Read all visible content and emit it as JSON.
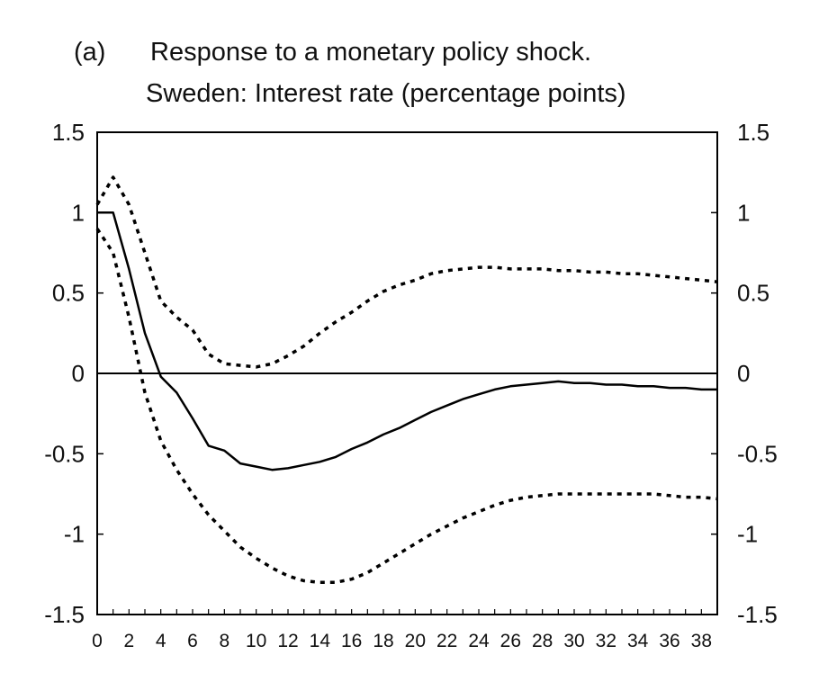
{
  "panel_label": "(a)",
  "title": "Response to a monetary policy shock.",
  "subtitle": "Sweden: Interest rate (percentage points)",
  "chart_data": {
    "type": "line",
    "title": "Response to a monetary policy shock.",
    "subtitle": "Sweden: Interest rate (percentage points)",
    "xlabel": "",
    "ylabel": "",
    "xlim": [
      0,
      39
    ],
    "ylim": [
      -1.5,
      1.5
    ],
    "x_ticks": [
      0,
      2,
      4,
      6,
      8,
      10,
      12,
      14,
      16,
      18,
      20,
      22,
      24,
      26,
      28,
      30,
      32,
      34,
      36,
      38
    ],
    "y_ticks_left": [
      "1.5",
      "1",
      "0.5",
      "0",
      "-0.5",
      "-1",
      "-1.5"
    ],
    "y_ticks_right": [
      "1.5",
      "1",
      "0.5",
      "0",
      "-0.5",
      "-1",
      "-1.5"
    ],
    "y_tick_values": [
      1.5,
      1,
      0.5,
      0,
      -0.5,
      -1,
      -1.5
    ],
    "grid": false,
    "legend": "none",
    "zero_line": true,
    "x": [
      0,
      1,
      2,
      3,
      4,
      5,
      6,
      7,
      8,
      9,
      10,
      11,
      12,
      13,
      14,
      15,
      16,
      17,
      18,
      19,
      20,
      21,
      22,
      23,
      24,
      25,
      26,
      27,
      28,
      29,
      30,
      31,
      32,
      33,
      34,
      35,
      36,
      37,
      38,
      39
    ],
    "series": [
      {
        "style": "solid",
        "color": "#000000",
        "values": [
          1.0,
          1.0,
          0.65,
          0.25,
          -0.02,
          -0.12,
          -0.28,
          -0.45,
          -0.48,
          -0.56,
          -0.58,
          -0.6,
          -0.59,
          -0.57,
          -0.55,
          -0.52,
          -0.47,
          -0.43,
          -0.38,
          -0.34,
          -0.29,
          -0.24,
          -0.2,
          -0.16,
          -0.13,
          -0.1,
          -0.08,
          -0.07,
          -0.06,
          -0.05,
          -0.06,
          -0.06,
          -0.07,
          -0.07,
          -0.08,
          -0.08,
          -0.09,
          -0.09,
          -0.1,
          -0.1
        ]
      },
      {
        "style": "dotted",
        "color": "#000000",
        "values": [
          1.05,
          1.22,
          1.05,
          0.75,
          0.45,
          0.35,
          0.27,
          0.12,
          0.06,
          0.05,
          0.04,
          0.06,
          0.11,
          0.17,
          0.25,
          0.32,
          0.38,
          0.45,
          0.51,
          0.55,
          0.58,
          0.62,
          0.64,
          0.65,
          0.66,
          0.66,
          0.65,
          0.65,
          0.65,
          0.64,
          0.64,
          0.63,
          0.63,
          0.62,
          0.62,
          0.61,
          0.6,
          0.59,
          0.58,
          0.57
        ]
      },
      {
        "style": "dotted",
        "color": "#000000",
        "values": [
          0.9,
          0.75,
          0.35,
          -0.12,
          -0.42,
          -0.6,
          -0.75,
          -0.88,
          -0.98,
          -1.08,
          -1.15,
          -1.21,
          -1.26,
          -1.29,
          -1.3,
          -1.3,
          -1.28,
          -1.24,
          -1.18,
          -1.12,
          -1.06,
          -1.0,
          -0.95,
          -0.9,
          -0.86,
          -0.82,
          -0.79,
          -0.77,
          -0.76,
          -0.75,
          -0.75,
          -0.75,
          -0.75,
          -0.75,
          -0.75,
          -0.75,
          -0.76,
          -0.77,
          -0.77,
          -0.78
        ]
      }
    ]
  }
}
